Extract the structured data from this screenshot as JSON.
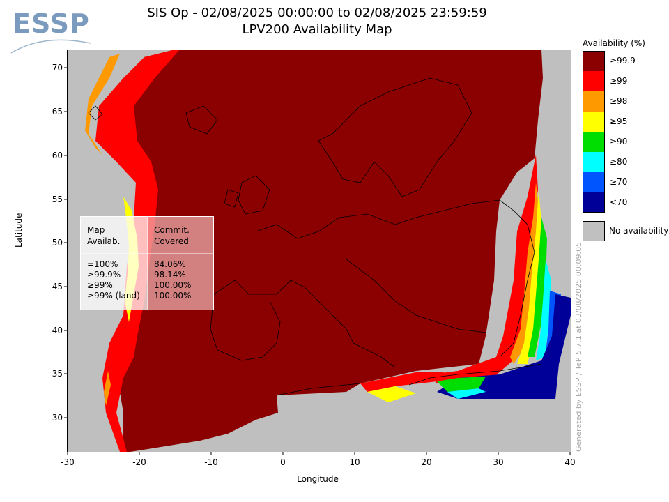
{
  "title": {
    "line1": "SIS Op - 02/08/2025 00:00:00 to 02/08/2025 23:59:59",
    "line2": "LPV200 Availability Map"
  },
  "logo": {
    "text": "ESSP"
  },
  "axes": {
    "xlabel": "Longitude",
    "ylabel": "Latitude",
    "xticks": [
      "-30",
      "-20",
      "-10",
      "0",
      "10",
      "20",
      "30",
      "40"
    ],
    "yticks": [
      "70",
      "65",
      "60",
      "55",
      "50",
      "45",
      "40",
      "35",
      "30"
    ]
  },
  "stats": {
    "header_left": [
      "Map",
      "Availab."
    ],
    "header_right": [
      "Commit.",
      "Covered"
    ],
    "rows": [
      {
        "label": "=100%",
        "value": "84.06%"
      },
      {
        "label": "≥99.9%",
        "value": "98.14%"
      },
      {
        "label": "≥99%",
        "value": "100.00%"
      },
      {
        "label": "≥99% (land)",
        "value": "100.00%"
      }
    ]
  },
  "legend": {
    "title": "Availability (%)",
    "items": [
      {
        "label": "≥99.9",
        "color": "#8b0000"
      },
      {
        "label": "≥99",
        "color": "#ff0000"
      },
      {
        "label": "≥98",
        "color": "#ff9900"
      },
      {
        "label": "≥95",
        "color": "#ffff00"
      },
      {
        "label": "≥90",
        "color": "#00dd00"
      },
      {
        "label": "≥80",
        "color": "#00ffff"
      },
      {
        "label": "≥70",
        "color": "#0055ff"
      },
      {
        "label": "<70",
        "color": "#000099"
      }
    ],
    "no_availability": {
      "label": "No availability",
      "color": "#c0c0c0"
    }
  },
  "credit": "Generated by ESSP / TeP 5.7.1 at 03/08/2025 00:09:05"
}
